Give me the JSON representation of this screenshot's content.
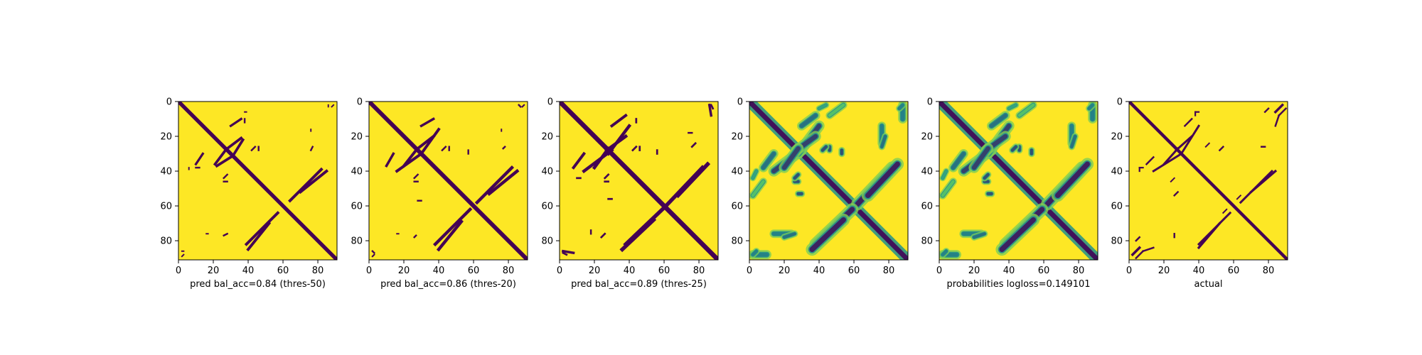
{
  "figure": {
    "colors": {
      "low": "#440154",
      "mid": "#21918c",
      "light": "#5ec962",
      "high": "#fde725"
    }
  },
  "chart_data": [
    {
      "type": "heatmap",
      "xlabel": "pred bal_acc=0.84 (thres-50)",
      "xlim": [
        0,
        91
      ],
      "ylim": [
        0,
        91
      ],
      "xticks": [
        0,
        20,
        40,
        60,
        80
      ],
      "yticks": [
        0,
        20,
        40,
        60,
        80
      ],
      "diagonal": {
        "width": 2.2,
        "value": 0.0
      },
      "features": [
        {
          "from": [
            22,
            37
          ],
          "to": [
            30,
            32
          ],
          "width": 1.5,
          "value": 0.0
        },
        {
          "from": [
            28,
            27
          ],
          "to": [
            36,
            21
          ],
          "width": 1.5,
          "value": 0.0
        },
        {
          "from": [
            30,
            14
          ],
          "to": [
            36,
            10
          ],
          "width": 1.3,
          "value": 0.0
        },
        {
          "from": [
            64,
            57
          ],
          "to": [
            82,
            39
          ],
          "width": 1.6,
          "value": 0.0
        },
        {
          "from": [
            40,
            85
          ],
          "to": [
            52,
            70
          ],
          "width": 1.6,
          "value": 0.0
        },
        {
          "from": [
            10,
            38
          ],
          "to": [
            12,
            38
          ],
          "width": 1.0,
          "value": 0.0
        },
        {
          "from": [
            26,
            46
          ],
          "to": [
            28,
            46
          ],
          "width": 1.0,
          "value": 0.0
        },
        {
          "from": [
            42,
            28
          ],
          "to": [
            44,
            26
          ],
          "width": 1.0,
          "value": 0.0
        },
        {
          "from": [
            76,
            28
          ],
          "to": [
            77,
            26
          ],
          "width": 1.0,
          "value": 0.0
        },
        {
          "from": [
            38,
            6
          ],
          "to": [
            39,
            6
          ],
          "width": 0.8,
          "value": 0.0
        },
        {
          "from": [
            16,
            76
          ],
          "to": [
            17,
            76
          ],
          "width": 0.8,
          "value": 0.0
        },
        {
          "from": [
            2,
            86
          ],
          "to": [
            3,
            86
          ],
          "width": 0.8,
          "value": 0.0
        },
        {
          "from": [
            88,
            3
          ],
          "to": [
            89,
            2
          ],
          "width": 0.8,
          "value": 0.0
        }
      ]
    },
    {
      "type": "heatmap",
      "xlabel": "pred bal_acc=0.86 (thres-20)",
      "xlim": [
        0,
        91
      ],
      "ylim": [
        0,
        91
      ],
      "xticks": [
        0,
        20,
        40,
        60,
        80
      ],
      "yticks": [
        0,
        20,
        40,
        60,
        80
      ],
      "diagonal": {
        "width": 2.4,
        "value": 0.0
      },
      "features": [
        {
          "from": [
            16,
            40
          ],
          "to": [
            30,
            30
          ],
          "width": 1.6,
          "value": 0.0
        },
        {
          "from": [
            28,
            27
          ],
          "to": [
            37,
            20
          ],
          "width": 1.6,
          "value": 0.0
        },
        {
          "from": [
            30,
            14
          ],
          "to": [
            37,
            10
          ],
          "width": 1.4,
          "value": 0.0
        },
        {
          "from": [
            62,
            58
          ],
          "to": [
            82,
            38
          ],
          "width": 1.8,
          "value": 0.0
        },
        {
          "from": [
            40,
            85
          ],
          "to": [
            53,
            69
          ],
          "width": 1.8,
          "value": 0.0
        },
        {
          "from": [
            26,
            46
          ],
          "to": [
            28,
            46
          ],
          "width": 1.0,
          "value": 0.0
        },
        {
          "from": [
            42,
            28
          ],
          "to": [
            44,
            26
          ],
          "width": 1.0,
          "value": 0.0
        },
        {
          "from": [
            77,
            27
          ],
          "to": [
            78,
            26
          ],
          "width": 1.0,
          "value": 0.0
        },
        {
          "from": [
            28,
            57
          ],
          "to": [
            30,
            57
          ],
          "width": 1.0,
          "value": 0.0
        },
        {
          "from": [
            2,
            86
          ],
          "to": [
            3,
            87
          ],
          "width": 1.0,
          "value": 0.0
        },
        {
          "from": [
            88,
            3
          ],
          "to": [
            89,
            2
          ],
          "width": 0.9,
          "value": 0.0
        },
        {
          "from": [
            16,
            76
          ],
          "to": [
            17,
            76
          ],
          "width": 0.8,
          "value": 0.0
        }
      ]
    },
    {
      "type": "heatmap",
      "xlabel": "pred bal_acc=0.89 (thres-25)",
      "xlim": [
        0,
        91
      ],
      "ylim": [
        0,
        91
      ],
      "xticks": [
        0,
        20,
        40,
        60,
        80
      ],
      "yticks": [
        0,
        20,
        40,
        60,
        80
      ],
      "diagonal": {
        "width": 2.7,
        "value": 0.0
      },
      "features": [
        {
          "from": [
            14,
            40
          ],
          "to": [
            30,
            28
          ],
          "width": 1.8,
          "value": 0.0
        },
        {
          "from": [
            27,
            28
          ],
          "to": [
            38,
            20
          ],
          "width": 1.8,
          "value": 0.0
        },
        {
          "from": [
            30,
            14
          ],
          "to": [
            38,
            8
          ],
          "width": 1.6,
          "value": 0.0
        },
        {
          "from": [
            62,
            59
          ],
          "to": [
            82,
            38
          ],
          "width": 2.2,
          "value": 0.0
        },
        {
          "from": [
            36,
            85
          ],
          "to": [
            54,
            68
          ],
          "width": 2.2,
          "value": 0.0
        },
        {
          "from": [
            2,
            86
          ],
          "to": [
            8,
            87
          ],
          "width": 1.4,
          "value": 0.0
        },
        {
          "from": [
            10,
            44
          ],
          "to": [
            12,
            44
          ],
          "width": 1.1,
          "value": 0.0
        },
        {
          "from": [
            26,
            46
          ],
          "to": [
            28,
            46
          ],
          "width": 1.1,
          "value": 0.0
        },
        {
          "from": [
            42,
            28
          ],
          "to": [
            44,
            26
          ],
          "width": 1.1,
          "value": 0.0
        },
        {
          "from": [
            76,
            26
          ],
          "to": [
            78,
            24
          ],
          "width": 1.1,
          "value": 0.0
        },
        {
          "from": [
            28,
            56
          ],
          "to": [
            30,
            56
          ],
          "width": 1.1,
          "value": 0.0
        },
        {
          "from": [
            87,
            2
          ],
          "to": [
            88,
            4
          ],
          "width": 1.1,
          "value": 0.0
        },
        {
          "from": [
            18,
            74
          ],
          "to": [
            18,
            76
          ],
          "width": 1.0,
          "value": 0.0
        }
      ]
    },
    {
      "type": "heatmap",
      "xlabel": "",
      "xlim": [
        0,
        91
      ],
      "ylim": [
        0,
        91
      ],
      "xticks": [
        0,
        20,
        40,
        60,
        80
      ],
      "yticks": [
        0,
        20,
        40,
        60,
        80
      ],
      "diagonal": {
        "width": 2.8,
        "value": 0.05
      },
      "features": [
        {
          "from": [
            14,
            40
          ],
          "to": [
            30,
            28
          ],
          "width": 2.6,
          "value": 0.2
        },
        {
          "from": [
            27,
            28
          ],
          "to": [
            38,
            20
          ],
          "width": 2.6,
          "value": 0.2
        },
        {
          "from": [
            30,
            14
          ],
          "to": [
            38,
            8
          ],
          "width": 2.2,
          "value": 0.35
        },
        {
          "from": [
            62,
            59
          ],
          "to": [
            82,
            38
          ],
          "width": 3.0,
          "value": 0.1
        },
        {
          "from": [
            36,
            85
          ],
          "to": [
            54,
            68
          ],
          "width": 3.0,
          "value": 0.1
        },
        {
          "from": [
            2,
            88
          ],
          "to": [
            10,
            88
          ],
          "width": 2.2,
          "value": 0.4
        },
        {
          "from": [
            14,
            76
          ],
          "to": [
            24,
            76
          ],
          "width": 2.0,
          "value": 0.4
        },
        {
          "from": [
            26,
            46
          ],
          "to": [
            28,
            46
          ],
          "width": 1.6,
          "value": 0.25
        },
        {
          "from": [
            42,
            28
          ],
          "to": [
            44,
            26
          ],
          "width": 1.6,
          "value": 0.25
        },
        {
          "from": [
            76,
            26
          ],
          "to": [
            78,
            20
          ],
          "width": 1.6,
          "value": 0.35
        },
        {
          "from": [
            28,
            53
          ],
          "to": [
            30,
            53
          ],
          "width": 1.6,
          "value": 0.25
        },
        {
          "from": [
            86,
            4
          ],
          "to": [
            88,
            2
          ],
          "width": 1.6,
          "value": 0.4
        },
        {
          "from": [
            2,
            54
          ],
          "to": [
            8,
            46
          ],
          "width": 1.8,
          "value": 0.7
        },
        {
          "from": [
            40,
            4
          ],
          "to": [
            44,
            2
          ],
          "width": 1.5,
          "value": 0.55
        }
      ]
    },
    {
      "type": "heatmap",
      "xlabel": "probabilities logloss=0.149101",
      "xlim": [
        0,
        91
      ],
      "ylim": [
        0,
        91
      ],
      "xticks": [
        0,
        20,
        40,
        60,
        80
      ],
      "yticks": [
        0,
        20,
        40,
        60,
        80
      ],
      "diagonal": {
        "width": 2.8,
        "value": 0.05
      },
      "features": [
        {
          "from": [
            14,
            40
          ],
          "to": [
            30,
            28
          ],
          "width": 2.6,
          "value": 0.2
        },
        {
          "from": [
            27,
            28
          ],
          "to": [
            38,
            20
          ],
          "width": 2.6,
          "value": 0.2
        },
        {
          "from": [
            30,
            14
          ],
          "to": [
            38,
            8
          ],
          "width": 2.2,
          "value": 0.35
        },
        {
          "from": [
            62,
            59
          ],
          "to": [
            82,
            38
          ],
          "width": 3.0,
          "value": 0.1
        },
        {
          "from": [
            36,
            85
          ],
          "to": [
            54,
            68
          ],
          "width": 3.0,
          "value": 0.1
        },
        {
          "from": [
            2,
            88
          ],
          "to": [
            10,
            88
          ],
          "width": 2.2,
          "value": 0.4
        },
        {
          "from": [
            14,
            76
          ],
          "to": [
            24,
            76
          ],
          "width": 2.0,
          "value": 0.4
        },
        {
          "from": [
            26,
            46
          ],
          "to": [
            28,
            46
          ],
          "width": 1.6,
          "value": 0.25
        },
        {
          "from": [
            42,
            28
          ],
          "to": [
            44,
            26
          ],
          "width": 1.6,
          "value": 0.25
        },
        {
          "from": [
            76,
            26
          ],
          "to": [
            78,
            20
          ],
          "width": 1.6,
          "value": 0.35
        },
        {
          "from": [
            28,
            53
          ],
          "to": [
            30,
            53
          ],
          "width": 1.6,
          "value": 0.25
        },
        {
          "from": [
            86,
            4
          ],
          "to": [
            88,
            2
          ],
          "width": 1.6,
          "value": 0.4
        },
        {
          "from": [
            2,
            54
          ],
          "to": [
            8,
            46
          ],
          "width": 1.8,
          "value": 0.7
        },
        {
          "from": [
            40,
            4
          ],
          "to": [
            44,
            2
          ],
          "width": 1.5,
          "value": 0.55
        }
      ]
    },
    {
      "type": "heatmap",
      "xlabel": "actual",
      "xlim": [
        0,
        91
      ],
      "ylim": [
        0,
        91
      ],
      "xticks": [
        0,
        20,
        40,
        60,
        80
      ],
      "yticks": [
        0,
        20,
        40,
        60,
        80
      ],
      "diagonal": {
        "width": 1.8,
        "value": 0.0
      },
      "features": [
        {
          "from": [
            14,
            40
          ],
          "to": [
            30,
            30
          ],
          "width": 1.2,
          "value": 0.0
        },
        {
          "from": [
            27,
            28
          ],
          "to": [
            36,
            20
          ],
          "width": 1.2,
          "value": 0.0
        },
        {
          "from": [
            32,
            14
          ],
          "to": [
            36,
            10
          ],
          "width": 1.0,
          "value": 0.0
        },
        {
          "from": [
            64,
            58
          ],
          "to": [
            82,
            40
          ],
          "width": 1.2,
          "value": 0.0
        },
        {
          "from": [
            40,
            84
          ],
          "to": [
            52,
            70
          ],
          "width": 1.3,
          "value": 0.0
        },
        {
          "from": [
            2,
            88
          ],
          "to": [
            6,
            84
          ],
          "width": 1.4,
          "value": 0.0
        },
        {
          "from": [
            8,
            86
          ],
          "to": [
            14,
            84
          ],
          "width": 1.0,
          "value": 0.0
        },
        {
          "from": [
            6,
            38
          ],
          "to": [
            8,
            38
          ],
          "width": 0.9,
          "value": 0.0
        },
        {
          "from": [
            38,
            6
          ],
          "to": [
            40,
            6
          ],
          "width": 0.9,
          "value": 0.0
        },
        {
          "from": [
            26,
            54
          ],
          "to": [
            28,
            52
          ],
          "width": 1.0,
          "value": 0.0
        },
        {
          "from": [
            76,
            26
          ],
          "to": [
            78,
            26
          ],
          "width": 1.0,
          "value": 0.0
        },
        {
          "from": [
            78,
            6
          ],
          "to": [
            80,
            4
          ],
          "width": 1.0,
          "value": 0.0
        },
        {
          "from": [
            86,
            8
          ],
          "to": [
            90,
            4
          ],
          "width": 1.0,
          "value": 0.0
        },
        {
          "from": [
            44,
            26
          ],
          "to": [
            46,
            24
          ],
          "width": 0.8,
          "value": 0.0
        },
        {
          "from": [
            54,
            64
          ],
          "to": [
            56,
            62
          ],
          "width": 0.8,
          "value": 0.0
        }
      ]
    }
  ]
}
